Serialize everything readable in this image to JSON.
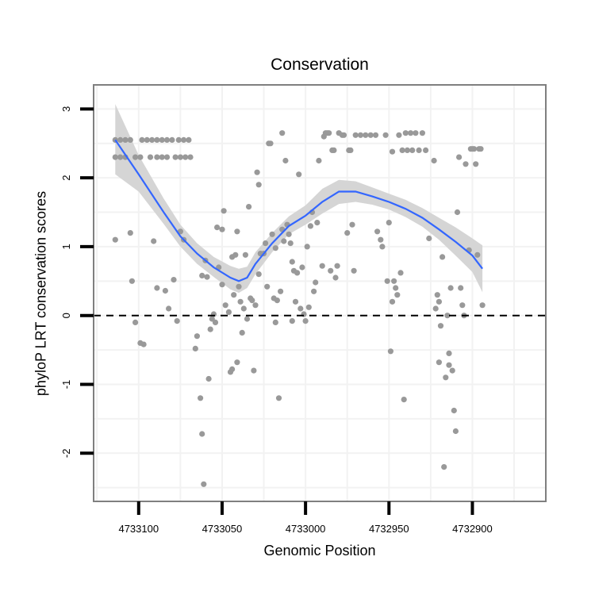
{
  "chart_data": {
    "type": "scatter",
    "title": "Conservation",
    "xlabel": "Genomic Position",
    "ylabel": "phyloP LRT conservation scores",
    "x_reversed": true,
    "xlim": [
      4733127,
      4732856
    ],
    "ylim": [
      -2.7,
      3.35
    ],
    "x_ticks": [
      4733100,
      4733050,
      4733000,
      4732950,
      4732900
    ],
    "x_tick_labels": [
      "4733100",
      "4733050",
      "4733000",
      "4732950",
      "4732900"
    ],
    "y_ticks": [
      -2,
      -1,
      0,
      1,
      2,
      3
    ],
    "y_tick_labels": [
      "-2",
      "-1",
      "0",
      "1",
      "2",
      "3"
    ],
    "reference_line": {
      "y": 0,
      "style": "dashed"
    },
    "colors": {
      "points": "#999999",
      "smooth": "#3366ff",
      "band": "#d3d3d3",
      "panel_border": "#7f7f7f",
      "grid": "#f2f2f2"
    },
    "series": [
      {
        "name": "scores",
        "points": [
          [
            4733114,
            2.55
          ],
          [
            4733111,
            2.55
          ],
          [
            4733108,
            2.55
          ],
          [
            4733105,
            2.55
          ],
          [
            4733098,
            2.55
          ],
          [
            4733095,
            2.55
          ],
          [
            4733092,
            2.55
          ],
          [
            4733089,
            2.55
          ],
          [
            4733086,
            2.55
          ],
          [
            4733083,
            2.55
          ],
          [
            4733080,
            2.55
          ],
          [
            4733076,
            2.55
          ],
          [
            4733073,
            2.55
          ],
          [
            4733070,
            2.55
          ],
          [
            4733114,
            2.3
          ],
          [
            4733111,
            2.3
          ],
          [
            4733108,
            2.3
          ],
          [
            4733102,
            2.3
          ],
          [
            4733099,
            2.3
          ],
          [
            4733093,
            2.3
          ],
          [
            4733089,
            2.3
          ],
          [
            4733086,
            2.3
          ],
          [
            4733083,
            2.3
          ],
          [
            4733078,
            2.3
          ],
          [
            4733075,
            2.3
          ],
          [
            4733072,
            2.3
          ],
          [
            4733069,
            2.3
          ],
          [
            4733114,
            1.1
          ],
          [
            4733105,
            1.2
          ],
          [
            4733104,
            0.5
          ],
          [
            4733102,
            -0.1
          ],
          [
            4733099,
            -0.4
          ],
          [
            4733097,
            -0.42
          ],
          [
            4733091,
            1.08
          ],
          [
            4733089,
            0.4
          ],
          [
            4733084,
            0.36
          ],
          [
            4733082,
            0.1
          ],
          [
            4733079,
            0.52
          ],
          [
            4733077,
            -0.08
          ],
          [
            4733075,
            1.22
          ],
          [
            4733073,
            1.1
          ],
          [
            4733066,
            -0.48
          ],
          [
            4733065,
            -0.3
          ],
          [
            4733063,
            -1.2
          ],
          [
            4733062,
            -1.72
          ],
          [
            4733061,
            -2.45
          ],
          [
            4733062,
            0.58
          ],
          [
            4733060,
            0.8
          ],
          [
            4733059,
            0.56
          ],
          [
            4733058,
            -0.92
          ],
          [
            4733057,
            -0.2
          ],
          [
            4733056,
            -0.05
          ],
          [
            4733055,
            0.02
          ],
          [
            4733054,
            -0.1
          ],
          [
            4733053,
            1.28
          ],
          [
            4733052,
            0.7
          ],
          [
            4733050,
            0.45
          ],
          [
            4733050,
            1.25
          ],
          [
            4733049,
            1.52
          ],
          [
            4733048,
            0.15
          ],
          [
            4733046,
            0.05
          ],
          [
            4733045,
            -0.82
          ],
          [
            4733044,
            -0.78
          ],
          [
            4733044,
            0.85
          ],
          [
            4733043,
            0.3
          ],
          [
            4733042,
            0.88
          ],
          [
            4733041,
            -0.68
          ],
          [
            4733041,
            1.22
          ],
          [
            4733040,
            0.42
          ],
          [
            4733039,
            0.2
          ],
          [
            4733038,
            -0.25
          ],
          [
            4733037,
            0.1
          ],
          [
            4733036,
            0.88
          ],
          [
            4733035,
            -0.05
          ],
          [
            4733034,
            1.58
          ],
          [
            4733033,
            0.25
          ],
          [
            4733032,
            0.22
          ],
          [
            4733031,
            -0.8
          ],
          [
            4733030,
            0.15
          ],
          [
            4733029,
            2.08
          ],
          [
            4733028,
            1.9
          ],
          [
            4733028,
            0.6
          ],
          [
            4733027,
            0.9
          ],
          [
            4733025,
            0.9
          ],
          [
            4733024,
            1.05
          ],
          [
            4733023,
            0.42
          ],
          [
            4733022,
            2.5
          ],
          [
            4733021,
            2.5
          ],
          [
            4733020,
            1.18
          ],
          [
            4733019,
            0.25
          ],
          [
            4733018,
            -0.1
          ],
          [
            4733018,
            0.98
          ],
          [
            4733017,
            0.22
          ],
          [
            4733016,
            -1.2
          ],
          [
            4733015,
            0.35
          ],
          [
            4733014,
            2.65
          ],
          [
            4733014,
            1.25
          ],
          [
            4733013,
            1.08
          ],
          [
            4733012,
            2.25
          ],
          [
            4733011,
            1.32
          ],
          [
            4733010,
            1.18
          ],
          [
            4733009,
            1.05
          ],
          [
            4733008,
            0.78
          ],
          [
            4733008,
            -0.08
          ],
          [
            4733007,
            0.65
          ],
          [
            4733006,
            0.2
          ],
          [
            4733005,
            0.62
          ],
          [
            4733004,
            2.05
          ],
          [
            4733003,
            0.1
          ],
          [
            4733002,
            0.7
          ],
          [
            4733001,
            0.02
          ],
          [
            4733000,
            -0.08
          ],
          [
            4732999,
            1.0
          ],
          [
            4732998,
            0.12
          ],
          [
            4732997,
            1.3
          ],
          [
            4732996,
            1.5
          ],
          [
            4732995,
            0.35
          ],
          [
            4732994,
            0.48
          ],
          [
            4732993,
            1.35
          ],
          [
            4732992,
            2.25
          ],
          [
            4732990,
            0.72
          ],
          [
            4732989,
            2.6
          ],
          [
            4732988,
            2.65
          ],
          [
            4732987,
            2.65
          ],
          [
            4732986,
            2.65
          ],
          [
            4732985,
            0.65
          ],
          [
            4732984,
            2.4
          ],
          [
            4732983,
            2.4
          ],
          [
            4732982,
            0.55
          ],
          [
            4732981,
            0.72
          ],
          [
            4732980,
            2.65
          ],
          [
            4732978,
            2.62
          ],
          [
            4732977,
            2.62
          ],
          [
            4732975,
            1.2
          ],
          [
            4732974,
            2.4
          ],
          [
            4732973,
            2.4
          ],
          [
            4732972,
            1.32
          ],
          [
            4732971,
            0.65
          ],
          [
            4732970,
            2.62
          ],
          [
            4732967,
            2.62
          ],
          [
            4732964,
            2.62
          ],
          [
            4732961,
            2.62
          ],
          [
            4732958,
            2.62
          ],
          [
            4732957,
            1.22
          ],
          [
            4732955,
            1.1
          ],
          [
            4732954,
            1.0
          ],
          [
            4732952,
            2.62
          ],
          [
            4732951,
            0.5
          ],
          [
            4732950,
            1.35
          ],
          [
            4732949,
            -0.52
          ],
          [
            4732948,
            0.2
          ],
          [
            4732948,
            2.38
          ],
          [
            4732947,
            0.5
          ],
          [
            4732946,
            0.4
          ],
          [
            4732945,
            0.3
          ],
          [
            4732944,
            2.62
          ],
          [
            4732943,
            0.62
          ],
          [
            4732942,
            2.4
          ],
          [
            4732941,
            -1.22
          ],
          [
            4732940,
            2.65
          ],
          [
            4732939,
            2.4
          ],
          [
            4732937,
            2.65
          ],
          [
            4732936,
            2.4
          ],
          [
            4732934,
            2.65
          ],
          [
            4732932,
            2.4
          ],
          [
            4732930,
            2.65
          ],
          [
            4732928,
            2.4
          ],
          [
            4732926,
            1.12
          ],
          [
            4732923,
            2.25
          ],
          [
            4732922,
            0.1
          ],
          [
            4732921,
            0.3
          ],
          [
            4732920,
            -0.68
          ],
          [
            4732920,
            0.2
          ],
          [
            4732919,
            -0.15
          ],
          [
            4732918,
            0.85
          ],
          [
            4732917,
            -2.2
          ],
          [
            4732916,
            -0.9
          ],
          [
            4732915,
            0.0
          ],
          [
            4732914,
            -0.72
          ],
          [
            4732914,
            -0.55
          ],
          [
            4732913,
            0.4
          ],
          [
            4732912,
            -0.8
          ],
          [
            4732911,
            -1.38
          ],
          [
            4732910,
            -1.68
          ],
          [
            4732909,
            1.5
          ],
          [
            4732908,
            2.3
          ],
          [
            4732907,
            0.4
          ],
          [
            4732906,
            0.15
          ],
          [
            4732905,
            0.0
          ],
          [
            4732904,
            2.2
          ],
          [
            4732902,
            0.95
          ],
          [
            4732901,
            2.42
          ],
          [
            4732900,
            2.42
          ],
          [
            4732899,
            2.42
          ],
          [
            4732898,
            2.2
          ],
          [
            4732897,
            0.88
          ],
          [
            4732896,
            2.42
          ],
          [
            4732895,
            2.42
          ],
          [
            4732894,
            0.15
          ]
        ]
      },
      {
        "name": "loess",
        "type": "line",
        "points": [
          [
            4733114,
            2.55
          ],
          [
            4733100,
            2.05
          ],
          [
            4733085,
            1.5
          ],
          [
            4733075,
            1.15
          ],
          [
            4733065,
            0.9
          ],
          [
            4733055,
            0.7
          ],
          [
            4733045,
            0.55
          ],
          [
            4733040,
            0.5
          ],
          [
            4733035,
            0.55
          ],
          [
            4733030,
            0.75
          ],
          [
            4733020,
            1.05
          ],
          [
            4733010,
            1.3
          ],
          [
            4733000,
            1.45
          ],
          [
            4732990,
            1.65
          ],
          [
            4732980,
            1.8
          ],
          [
            4732970,
            1.8
          ],
          [
            4732960,
            1.73
          ],
          [
            4732950,
            1.65
          ],
          [
            4732940,
            1.55
          ],
          [
            4732930,
            1.42
          ],
          [
            4732920,
            1.25
          ],
          [
            4732910,
            1.07
          ],
          [
            4732900,
            0.87
          ],
          [
            4732894,
            0.68
          ]
        ]
      }
    ],
    "confidence_band": {
      "x": [
        4733114,
        4733100,
        4733085,
        4733075,
        4733065,
        4733055,
        4733045,
        4733040,
        4733035,
        4733030,
        4733020,
        4733010,
        4733000,
        4732990,
        4732980,
        4732970,
        4732960,
        4732950,
        4732940,
        4732930,
        4732920,
        4732910,
        4732900,
        4732894
      ],
      "lower": [
        2.05,
        1.8,
        1.33,
        1.0,
        0.75,
        0.56,
        0.38,
        0.33,
        0.4,
        0.6,
        0.92,
        1.18,
        1.32,
        1.48,
        1.62,
        1.65,
        1.61,
        1.54,
        1.43,
        1.29,
        1.1,
        0.87,
        0.63,
        0.34
      ],
      "upper": [
        3.07,
        2.33,
        1.7,
        1.32,
        1.05,
        0.85,
        0.72,
        0.68,
        0.71,
        0.92,
        1.2,
        1.44,
        1.6,
        1.84,
        1.97,
        1.95,
        1.86,
        1.77,
        1.68,
        1.56,
        1.42,
        1.28,
        1.12,
        1.02
      ]
    }
  }
}
